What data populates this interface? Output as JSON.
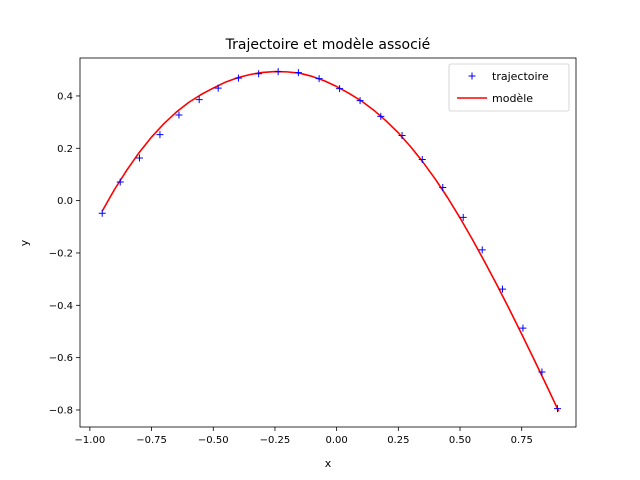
{
  "chart_data": {
    "type": "line",
    "title": "Trajectoire et modèle associé",
    "xlabel": "x",
    "ylabel": "y",
    "xlim": [
      -1.04,
      0.97
    ],
    "ylim": [
      -0.865,
      0.545
    ],
    "x_ticks": [
      -1.0,
      -0.75,
      -0.5,
      -0.25,
      0.0,
      0.25,
      0.5,
      0.75
    ],
    "x_tick_labels": [
      "−1.00",
      "−0.75",
      "−0.50",
      "−0.25",
      "0.00",
      "0.25",
      "0.50",
      "0.75"
    ],
    "y_ticks": [
      -0.8,
      -0.6,
      -0.4,
      -0.2,
      0.0,
      0.2,
      0.4
    ],
    "y_tick_labels": [
      "−0.8",
      "−0.6",
      "−0.4",
      "−0.2",
      "0.0",
      "0.2",
      "0.4"
    ],
    "grid": false,
    "legend_position": "top-right",
    "series": [
      {
        "name": "trajectoire",
        "style": "markers",
        "marker": "+",
        "color": "#0000ff",
        "x": [
          -0.95,
          -0.877,
          -0.799,
          -0.716,
          -0.639,
          -0.557,
          -0.48,
          -0.398,
          -0.316,
          -0.237,
          -0.155,
          -0.071,
          0.012,
          0.095,
          0.179,
          0.265,
          0.347,
          0.43,
          0.513,
          0.59,
          0.672,
          0.755,
          0.832,
          0.895
        ],
        "y": [
          -0.048,
          0.071,
          0.163,
          0.252,
          0.327,
          0.386,
          0.43,
          0.468,
          0.485,
          0.493,
          0.489,
          0.466,
          0.428,
          0.382,
          0.322,
          0.249,
          0.157,
          0.05,
          -0.064,
          -0.188,
          -0.338,
          -0.487,
          -0.655,
          -0.795
        ]
      },
      {
        "name": "modèle",
        "style": "line",
        "color": "#ff0000",
        "x": [
          -0.95,
          -0.9,
          -0.85,
          -0.8,
          -0.75,
          -0.7,
          -0.65,
          -0.6,
          -0.55,
          -0.5,
          -0.45,
          -0.4,
          -0.35,
          -0.3,
          -0.25,
          -0.2,
          -0.15,
          -0.1,
          -0.05,
          0.0,
          0.05,
          0.1,
          0.15,
          0.2,
          0.25,
          0.3,
          0.35,
          0.4,
          0.45,
          0.5,
          0.55,
          0.6,
          0.65,
          0.7,
          0.75,
          0.8,
          0.85,
          0.9
        ],
        "y": [
          -0.04,
          0.043,
          0.117,
          0.184,
          0.243,
          0.294,
          0.338,
          0.375,
          0.405,
          0.43,
          0.453,
          0.47,
          0.482,
          0.49,
          0.493,
          0.492,
          0.487,
          0.475,
          0.458,
          0.436,
          0.41,
          0.381,
          0.346,
          0.305,
          0.259,
          0.206,
          0.147,
          0.082,
          0.011,
          -0.066,
          -0.148,
          -0.234,
          -0.323,
          -0.415,
          -0.51,
          -0.607,
          -0.705,
          -0.805
        ]
      }
    ]
  }
}
